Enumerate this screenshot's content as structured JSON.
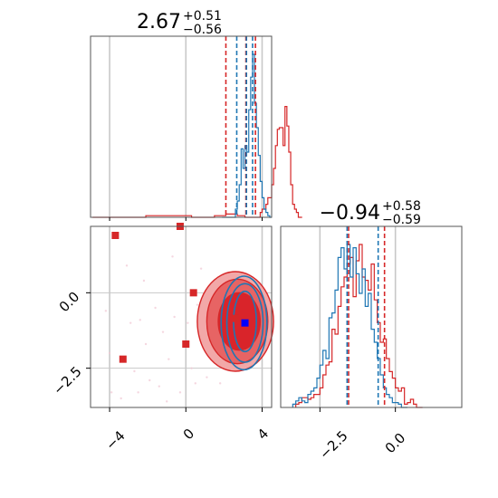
{
  "chart_data": {
    "type": "scatter",
    "panels": [
      {
        "name": "marginal-param-1",
        "type": "histogram",
        "title": {
          "value": "2.67",
          "plus": "+0.51",
          "minus": "−0.56"
        },
        "xlim": [
          -5,
          4.5
        ],
        "grid_x": [
          -4,
          0,
          4
        ],
        "red_quantiles": [
          2.1,
          3.15,
          3.65
        ],
        "blue_quantiles": [
          2.67,
          3.18,
          3.5
        ],
        "red_hist": {
          "bin_start": -4.9,
          "bin_width": 0.1,
          "counts_pct_of_max": [
            0,
            0,
            0,
            0,
            0,
            0,
            0,
            0,
            0,
            0,
            0,
            0,
            0,
            0,
            0,
            0,
            0,
            0,
            0,
            0,
            0,
            0,
            0,
            0,
            0,
            0,
            0,
            0,
            1,
            1,
            1,
            1,
            1,
            1,
            1,
            1,
            1,
            1,
            1,
            1,
            1,
            1,
            1,
            1,
            1,
            1,
            1,
            1,
            1,
            1,
            1,
            1,
            0,
            0,
            0,
            0,
            0,
            0,
            0,
            0,
            0,
            0,
            0,
            0,
            1,
            1,
            1,
            1,
            1,
            1,
            2,
            2,
            2,
            2,
            2,
            2,
            1,
            1,
            1,
            1,
            0,
            0,
            0,
            0,
            0,
            0,
            0,
            0,
            3,
            5,
            5,
            8,
            12,
            12,
            20,
            30,
            44,
            54,
            55,
            55,
            44,
            68,
            56,
            40,
            20,
            8,
            5,
            3,
            0,
            0
          ]
        },
        "blue_hist": {
          "bin_start": 1.9,
          "bin_width": 0.1,
          "counts_pct_of_max": [
            0,
            0,
            0,
            0,
            0,
            0,
            0,
            5,
            10,
            20,
            42,
            30,
            44,
            40,
            66,
            86,
            100,
            70,
            55,
            38,
            22,
            12,
            5,
            3,
            1,
            0
          ]
        }
      },
      {
        "name": "joint-param-1-param-2",
        "type": "scatter-contour",
        "xlim": [
          -5,
          4.5
        ],
        "ylim": [
          -3.8,
          2.2
        ],
        "grid_x": [
          -4,
          0,
          4
        ],
        "grid_y": [
          0.0,
          -2.5
        ],
        "red_markers": [
          [
            -3.7,
            1.9
          ],
          [
            -0.3,
            2.2
          ],
          [
            0.4,
            0.0
          ],
          [
            0.0,
            -1.7
          ],
          [
            -3.3,
            -2.2
          ],
          [
            2.6,
            -0.85
          ]
        ],
        "blue_marker": [
          3.1,
          -1.0
        ],
        "red_contours": [
          {
            "cx": 2.8,
            "cy": -0.95,
            "rx": 1.1,
            "ry": 0.95,
            "level": "inner"
          },
          {
            "cx": 2.7,
            "cy": -0.95,
            "rx": 1.6,
            "ry": 1.4,
            "level": "middle"
          },
          {
            "cx": 2.6,
            "cy": -0.95,
            "rx": 2.0,
            "ry": 1.65,
            "level": "outer"
          }
        ],
        "blue_contours": [
          {
            "cx": 3.1,
            "cy": -0.95,
            "rx": 0.6,
            "ry": 1.0
          },
          {
            "cx": 3.1,
            "cy": -1.0,
            "rx": 0.95,
            "ry": 1.3
          },
          {
            "cx": 3.05,
            "cy": -1.0,
            "rx": 1.2,
            "ry": 1.55
          }
        ],
        "scatter_cloud": [
          [
            -3.9,
            -3.3
          ],
          [
            -3.4,
            -3.5
          ],
          [
            -2.9,
            -1.0
          ],
          [
            -2.7,
            -2.6
          ],
          [
            -2.4,
            -0.9
          ],
          [
            -2.1,
            -1.7
          ],
          [
            -1.9,
            -2.9
          ],
          [
            -1.6,
            -0.5
          ],
          [
            -1.4,
            -3.1
          ],
          [
            -1.2,
            -1.3
          ],
          [
            -0.9,
            -2.2
          ],
          [
            -0.6,
            -0.8
          ],
          [
            -0.3,
            -3.3
          ],
          [
            0.1,
            -1.0
          ],
          [
            0.3,
            -2.5
          ],
          [
            0.6,
            -0.4
          ],
          [
            0.9,
            -1.6
          ],
          [
            1.1,
            -2.8
          ],
          [
            1.3,
            -0.2
          ],
          [
            1.6,
            -2.1
          ],
          [
            -4.2,
            -0.6
          ],
          [
            -3.1,
            0.9
          ],
          [
            -2.2,
            0.4
          ],
          [
            -0.7,
            1.2
          ],
          [
            0.8,
            0.8
          ],
          [
            1.8,
            -3.0
          ],
          [
            -4.0,
            -2.0
          ],
          [
            -1.0,
            -3.6
          ],
          [
            0.5,
            -3.0
          ],
          [
            -2.5,
            -3.3
          ]
        ]
      },
      {
        "name": "marginal-param-2",
        "type": "histogram",
        "title": {
          "value": "−0.94",
          "plus": "+0.58",
          "minus": "−0.59"
        },
        "xlim": [
          -3.8,
          2.2
        ],
        "grid_x": [
          -2.5,
          0.0
        ],
        "red_quantiles": [
          -1.55,
          -0.36
        ],
        "blue_quantiles": [
          -1.6,
          -0.57
        ],
        "red_hist": {
          "bin_start": -3.3,
          "bin_width": 0.1,
          "counts_pct_of_max": [
            2,
            3,
            6,
            6,
            5,
            6,
            8,
            8,
            12,
            20,
            26,
            28,
            48,
            45,
            62,
            74,
            80,
            88,
            92,
            68,
            90,
            100,
            80,
            78,
            72,
            88,
            66,
            52,
            40,
            42,
            30,
            22,
            18,
            12,
            10,
            12,
            2,
            3,
            5,
            2,
            0,
            0
          ]
        },
        "blue_hist": {
          "bin_start": -3.4,
          "bin_width": 0.1,
          "counts_pct_of_max": [
            2,
            4,
            6,
            4,
            3,
            8,
            10,
            12,
            18,
            26,
            35,
            30,
            55,
            58,
            72,
            92,
            98,
            85,
            100,
            80,
            98,
            82,
            70,
            85,
            62,
            70,
            48,
            40,
            30,
            20,
            12,
            8,
            6,
            3,
            3,
            2,
            0,
            0
          ]
        }
      }
    ],
    "tick_labels": {
      "x_param1": [
        "−4",
        "0",
        "4"
      ],
      "x_param2": [
        "−2.5",
        "0.0"
      ],
      "y_param2": [
        "0.0",
        "−2.5"
      ]
    },
    "colors": {
      "red": "#d62728",
      "blue": "#1f77b4",
      "red_fill_light": "#f2a8a8",
      "red_fill_mid": "#e76464",
      "red_fill_dark": "#d9242a",
      "grid": "#c8c8c8"
    }
  }
}
